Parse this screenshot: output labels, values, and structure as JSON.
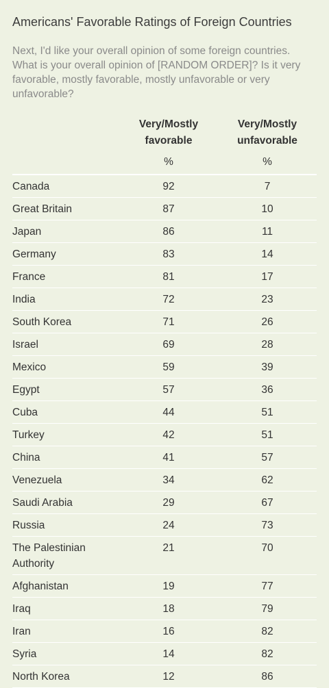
{
  "title": "Americans' Favorable Ratings of Foreign Countries",
  "question": "Next, I'd like your overall opinion of some foreign countries. What is your overall opinion of [RANDOM ORDER]? Is it very favorable, mostly favorable, mostly unfavorable or very unfavorable?",
  "chart_data": {
    "type": "table",
    "columns": [
      "",
      "Very/Mostly favorable",
      "Very/Mostly unfavorable"
    ],
    "units": [
      "",
      "%",
      "%"
    ],
    "rows": [
      {
        "country": "Canada",
        "favorable": 92,
        "unfavorable": 7
      },
      {
        "country": "Great Britain",
        "favorable": 87,
        "unfavorable": 10
      },
      {
        "country": "Japan",
        "favorable": 86,
        "unfavorable": 11
      },
      {
        "country": "Germany",
        "favorable": 83,
        "unfavorable": 14
      },
      {
        "country": "France",
        "favorable": 81,
        "unfavorable": 17
      },
      {
        "country": "India",
        "favorable": 72,
        "unfavorable": 23
      },
      {
        "country": "South Korea",
        "favorable": 71,
        "unfavorable": 26
      },
      {
        "country": "Israel",
        "favorable": 69,
        "unfavorable": 28
      },
      {
        "country": "Mexico",
        "favorable": 59,
        "unfavorable": 39
      },
      {
        "country": "Egypt",
        "favorable": 57,
        "unfavorable": 36
      },
      {
        "country": "Cuba",
        "favorable": 44,
        "unfavorable": 51
      },
      {
        "country": "Turkey",
        "favorable": 42,
        "unfavorable": 51
      },
      {
        "country": "China",
        "favorable": 41,
        "unfavorable": 57
      },
      {
        "country": "Venezuela",
        "favorable": 34,
        "unfavorable": 62
      },
      {
        "country": "Saudi Arabia",
        "favorable": 29,
        "unfavorable": 67
      },
      {
        "country": "Russia",
        "favorable": 24,
        "unfavorable": 73
      },
      {
        "country": "The Palestinian Authority",
        "favorable": 21,
        "unfavorable": 70
      },
      {
        "country": "Afghanistan",
        "favorable": 19,
        "unfavorable": 77
      },
      {
        "country": "Iraq",
        "favorable": 18,
        "unfavorable": 79
      },
      {
        "country": "Iran",
        "favorable": 16,
        "unfavorable": 82
      },
      {
        "country": "Syria",
        "favorable": 14,
        "unfavorable": 82
      },
      {
        "country": "North Korea",
        "favorable": 12,
        "unfavorable": 86
      }
    ]
  }
}
